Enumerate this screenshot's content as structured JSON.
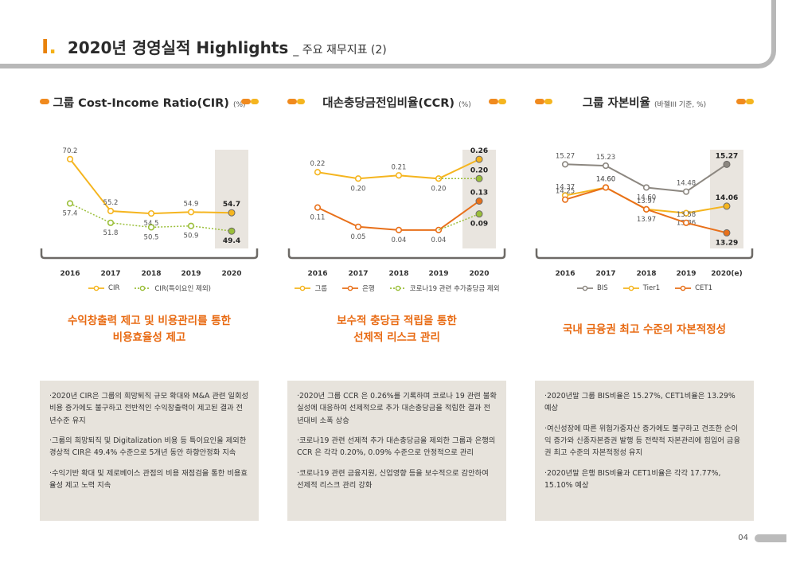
{
  "header": {
    "roman": "I",
    "dot": ".",
    "title": "2020년 경영실적 Highlights",
    "subtitle": "_ 주요 재무지표 (2)"
  },
  "charts": [
    {
      "title": "그룹 Cost-Income Ratio(CIR)",
      "unit": "(%)",
      "legend": [
        "CIR",
        "CIR(특이요인 제외)"
      ],
      "highlight_line1": "수익창출력 제고 및 비용관리를 통한",
      "highlight_line2": "비용효율성 제고",
      "bullets": [
        "·2020년 CIR은 그룹의 희망퇴직 규모 확대와 M&A 관련 일회성 비용 증가에도 불구하고 전반적인 수익창출력이 제고된 결과 전년수준 유지",
        "·그룹의 희망퇴직 및 Digitalization 비용 등 특이요인을 제외한 경상적 CIR은 49.4% 수준으로 5개년 동안 하향안정화 지속",
        "·수익기반 확대 및 제로베이스 관점의 비용 재점검을 통한 비용효율성 제고 노력 지속"
      ]
    },
    {
      "title": "대손충당금전입비율(CCR)",
      "unit": "(%)",
      "legend": [
        "그룹",
        "은행",
        "코로나19 관련 추가충당금 제외"
      ],
      "highlight_line1": "보수적 충당금 적립을 통한",
      "highlight_line2": "선제적 리스크 관리",
      "bullets": [
        "·2020년 그룹 CCR 은 0.26%를 기록하며 코로나 19 관련 불확실성에 대응하여 선제적으로 추가 대손충당금을 적립한 결과 전년대비 소폭 상승",
        "·코로나19 관련 선제적 추가 대손충당금을 제외한 그룹과 은행의 CCR 은 각각 0.20%, 0.09% 수준으로 안정적으로 관리",
        "·코로나19 관련 금융지원, 신업영향 등을 보수적으로 감안하여 선제적 리스크 관리 강화"
      ]
    },
    {
      "title": "그룹 자본비율",
      "unit": "(바젤III 기준, %)",
      "legend": [
        "BIS",
        "Tier1",
        "CET1"
      ],
      "highlight_line1": "국내 금융권 최고 수준의 자본적정성",
      "highlight_line2": "",
      "bullets": [
        "·2020년말 그룹 BIS비율은 15.27%, CET1비율은 13.29% 예상",
        "·여신성장에 따른 위험가중자산 증가에도 불구하고 견조한 순이익 증가와 신종자본증권 발행 등 전략적 자본관리에 힘입어 금융권 최고 수준의 자본적정성 유지",
        "·2020년말 은행 BIS비율과 CET1비율은 각각 17.77%, 15.10% 예상"
      ]
    }
  ],
  "chart_data": [
    {
      "type": "line",
      "title": "그룹 Cost-Income Ratio(CIR)",
      "x": [
        "2016",
        "2017",
        "2018",
        "2019",
        "2020"
      ],
      "series": [
        {
          "name": "CIR",
          "values": [
            70.2,
            55.2,
            54.5,
            54.9,
            54.7
          ],
          "labels": [
            "70.2",
            "55.2",
            "54.5",
            "54.9",
            "54.7"
          ]
        },
        {
          "name": "CIR(특이요인 제외)",
          "values": [
            57.4,
            51.8,
            50.5,
            50.9,
            49.4
          ],
          "labels": [
            "57.4",
            "51.8",
            "50.5",
            "50.9",
            "49.4"
          ]
        }
      ]
    },
    {
      "type": "line",
      "title": "대손충당금전입비율(CCR)",
      "x": [
        "2016",
        "2017",
        "2018",
        "2019",
        "2020"
      ],
      "series": [
        {
          "name": "그룹",
          "values": [
            0.22,
            0.2,
            0.21,
            0.2,
            0.26
          ],
          "labels": [
            "0.22",
            "0.20",
            "0.21",
            "0.20",
            "0.26"
          ]
        },
        {
          "name": "그룹 (코로나19 관련 추가충당금 제외)",
          "values": [
            null,
            null,
            null,
            0.2,
            0.2
          ],
          "labels": [
            "",
            "",
            "",
            "",
            "0.20"
          ]
        },
        {
          "name": "은행",
          "values": [
            0.11,
            0.05,
            0.04,
            0.04,
            0.13
          ],
          "labels": [
            "0.11",
            "0.05",
            "0.04",
            "0.04",
            "0.13"
          ]
        },
        {
          "name": "은행 (코로나19 관련 추가충당금 제외)",
          "values": [
            null,
            null,
            null,
            0.04,
            0.09
          ],
          "labels": [
            "",
            "",
            "",
            "",
            "0.09"
          ]
        }
      ]
    },
    {
      "type": "line",
      "title": "그룹 자본비율",
      "x": [
        "2016",
        "2017",
        "2018",
        "2019",
        "2020(e)"
      ],
      "series": [
        {
          "name": "BIS",
          "values": [
            15.27,
            15.23,
            14.6,
            14.48,
            15.27
          ],
          "labels": [
            "15.27",
            "15.23",
            "14.60",
            "14.48",
            "15.27"
          ]
        },
        {
          "name": "Tier1",
          "values": [
            14.37,
            14.6,
            13.97,
            13.86,
            14.06
          ],
          "labels": [
            "14.37",
            "14.60",
            "13.97",
            "13.86",
            "14.06"
          ]
        },
        {
          "name": "CET1",
          "values": [
            14.25,
            14.6,
            13.97,
            13.58,
            13.29
          ],
          "labels": [
            "14.25",
            "14.60",
            "13.97",
            "13.58",
            "13.29"
          ]
        }
      ]
    }
  ],
  "colors": {
    "orange": "#e8701a",
    "yellow": "#f5b51f",
    "gray": "#8c8780",
    "green": "#9bbf3a",
    "highlight_band": "#e9e5df"
  },
  "page_number": "04"
}
